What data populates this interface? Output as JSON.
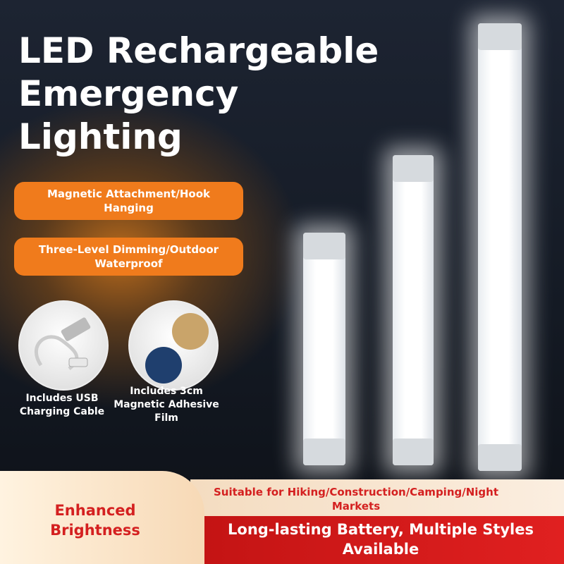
{
  "header": {
    "title_lines": [
      "LED Rechargeable",
      "Emergency",
      "Lighting"
    ]
  },
  "badges": [
    "Magnetic Attachment/Hook Hanging",
    "Three-Level Dimming/Outdoor Waterproof"
  ],
  "accessories": [
    "Includes USB Charging Cable",
    "Includes 3cm Magnetic Adhesive Film"
  ],
  "footer": {
    "highlight": "Enhanced Brightness",
    "uses": "Suitable for Hiking/Construction/Camping/Night Markets",
    "banner": "Long-lasting Battery, Multiple Styles Available"
  }
}
